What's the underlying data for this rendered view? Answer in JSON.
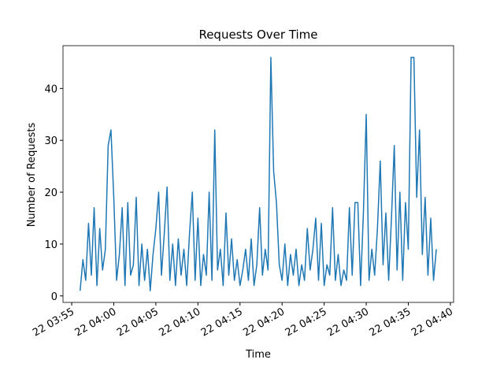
{
  "chart_data": {
    "type": "line",
    "title": "Requests Over Time",
    "xlabel": "Time",
    "ylabel": "Number of Requests",
    "x": [
      "03:56:00",
      "03:56:20",
      "03:56:40",
      "03:57:00",
      "03:57:20",
      "03:57:40",
      "03:58:00",
      "03:58:20",
      "03:58:40",
      "03:59:00",
      "03:59:20",
      "03:59:40",
      "04:00:00",
      "04:00:20",
      "04:00:40",
      "04:01:00",
      "04:01:20",
      "04:01:40",
      "04:02:00",
      "04:02:20",
      "04:02:40",
      "04:03:00",
      "04:03:20",
      "04:03:40",
      "04:04:00",
      "04:04:20",
      "04:04:40",
      "04:05:00",
      "04:05:20",
      "04:05:40",
      "04:06:00",
      "04:06:20",
      "04:06:40",
      "04:07:00",
      "04:07:20",
      "04:07:40",
      "04:08:00",
      "04:08:20",
      "04:08:40",
      "04:09:00",
      "04:09:20",
      "04:09:40",
      "04:10:00",
      "04:10:20",
      "04:10:40",
      "04:11:00",
      "04:11:20",
      "04:11:40",
      "04:12:00",
      "04:12:20",
      "04:12:40",
      "04:13:00",
      "04:13:20",
      "04:13:40",
      "04:14:00",
      "04:14:20",
      "04:14:40",
      "04:15:00",
      "04:15:20",
      "04:15:40",
      "04:16:00",
      "04:16:20",
      "04:16:40",
      "04:17:00",
      "04:17:20",
      "04:17:40",
      "04:18:00",
      "04:18:20",
      "04:18:40",
      "04:19:00",
      "04:19:20",
      "04:19:40",
      "04:20:00",
      "04:20:20",
      "04:20:40",
      "04:21:00",
      "04:21:20",
      "04:21:40",
      "04:22:00",
      "04:22:20",
      "04:22:40",
      "04:23:00",
      "04:23:20",
      "04:23:40",
      "04:24:00",
      "04:24:20",
      "04:24:40",
      "04:25:00",
      "04:25:20",
      "04:25:40",
      "04:26:00",
      "04:26:20",
      "04:26:40",
      "04:27:00",
      "04:27:20",
      "04:27:40",
      "04:28:00",
      "04:28:20",
      "04:28:40",
      "04:29:00",
      "04:29:20",
      "04:29:40",
      "04:30:00",
      "04:30:20",
      "04:30:40",
      "04:31:00",
      "04:31:20",
      "04:31:40",
      "04:32:00",
      "04:32:20",
      "04:32:40",
      "04:33:00",
      "04:33:20",
      "04:33:40",
      "04:34:00",
      "04:34:20",
      "04:34:40",
      "04:35:00",
      "04:35:20",
      "04:35:40",
      "04:36:00",
      "04:36:20",
      "04:36:40",
      "04:37:00",
      "04:37:20",
      "04:37:40",
      "04:38:00",
      "04:38:20"
    ],
    "series": [
      {
        "name": "Requests",
        "color": "#1f77b4",
        "values": [
          1,
          7,
          3,
          14,
          4,
          17,
          2,
          13,
          5,
          9,
          29,
          32,
          19,
          3,
          8,
          17,
          2,
          18,
          4,
          6,
          19,
          2,
          10,
          3,
          9,
          1,
          8,
          13,
          20,
          4,
          12,
          21,
          3,
          10,
          2,
          11,
          4,
          9,
          2,
          12,
          20,
          3,
          15,
          2,
          8,
          4,
          20,
          3,
          32,
          5,
          9,
          2,
          16,
          4,
          11,
          3,
          7,
          2,
          5,
          9,
          3,
          11,
          2,
          6,
          17,
          4,
          9,
          5,
          46,
          24,
          18,
          6,
          3,
          10,
          2,
          8,
          4,
          9,
          2,
          6,
          3,
          13,
          5,
          9,
          15,
          3,
          14,
          2,
          6,
          4,
          17,
          3,
          8,
          2,
          5,
          3,
          17,
          4,
          18,
          18,
          2,
          16,
          35,
          3,
          9,
          4,
          13,
          26,
          6,
          16,
          3,
          15,
          29,
          5,
          20,
          3,
          18,
          9,
          46,
          46,
          19,
          32,
          8,
          19,
          4,
          15,
          3,
          9
        ]
      }
    ],
    "xlim": [
      "03:53:58",
      "04:40:23"
    ],
    "xticks": [
      {
        "value": "03:55:00",
        "label": "22 03:55"
      },
      {
        "value": "04:00:00",
        "label": "22 04:00"
      },
      {
        "value": "04:05:00",
        "label": "22 04:05"
      },
      {
        "value": "04:10:00",
        "label": "22 04:10"
      },
      {
        "value": "04:15:00",
        "label": "22 04:15"
      },
      {
        "value": "04:20:00",
        "label": "22 04:20"
      },
      {
        "value": "04:25:00",
        "label": "22 04:25"
      },
      {
        "value": "04:30:00",
        "label": "22 04:30"
      },
      {
        "value": "04:35:00",
        "label": "22 04:35"
      },
      {
        "value": "04:40:00",
        "label": "22 04:40"
      }
    ],
    "ylim": [
      -1.25,
      48.25
    ],
    "yticks": [
      0,
      10,
      20,
      30,
      40
    ]
  }
}
